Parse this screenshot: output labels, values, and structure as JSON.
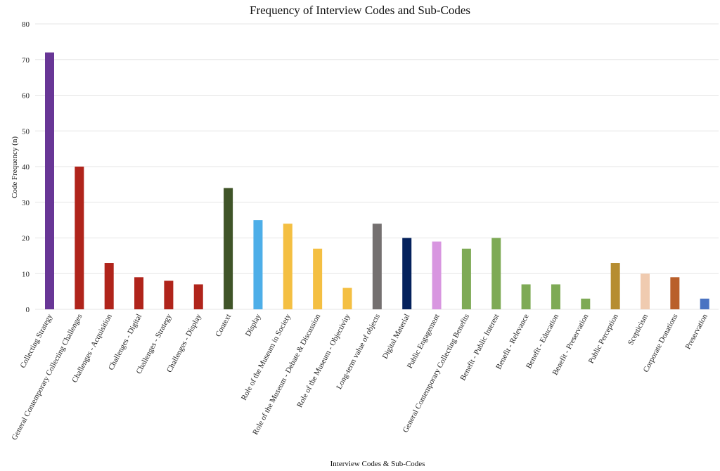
{
  "chart_data": {
    "type": "bar",
    "title": "Frequency of Interview Codes and Sub-Codes",
    "xlabel": "Interview Codes & Sub-Codes",
    "ylabel": "Code Frequency (n)",
    "ylim": [
      0,
      80
    ],
    "yticks": [
      0,
      10,
      20,
      30,
      40,
      50,
      60,
      70,
      80
    ],
    "grid": true,
    "categories": [
      "Collecting Strategy",
      "General Contemporary Collecting Challenges",
      "Challenges - Acquisition",
      "Challenges - Digital",
      "Challenges - Strategy",
      "Challenges - Display",
      "Context",
      "Display",
      "Role of the Museum in Society",
      "Role of the Museum - Debate & Discussion",
      "Role of the Museum - Objectivity",
      "Long-term value of objects",
      "Digital Material",
      "Public Engagement",
      "General Contemporary Collecting Benefits",
      "Benefit - Public Interest",
      "Benefit - Relevance",
      "Benefit - Education",
      "Benefit - Preservation",
      "Public Perception",
      "Scepticism",
      "Corporate Donations",
      "Preservation"
    ],
    "values": [
      72,
      40,
      13,
      9,
      8,
      7,
      34,
      25,
      24,
      17,
      6,
      24,
      20,
      19,
      17,
      20,
      7,
      7,
      3,
      13,
      10,
      9,
      3
    ],
    "colors": [
      "#683696",
      "#B0241B",
      "#B0241B",
      "#B0241B",
      "#B0241B",
      "#B0241B",
      "#3F5428",
      "#4DAEE8",
      "#F4BF42",
      "#F4BF42",
      "#F4BF42",
      "#747070",
      "#04215C",
      "#D896E0",
      "#7EAA55",
      "#7EAA55",
      "#7EAA55",
      "#7EAA55",
      "#7EAA55",
      "#B68D31",
      "#F0CBB0",
      "#B95F2A",
      "#4A73C2"
    ]
  }
}
